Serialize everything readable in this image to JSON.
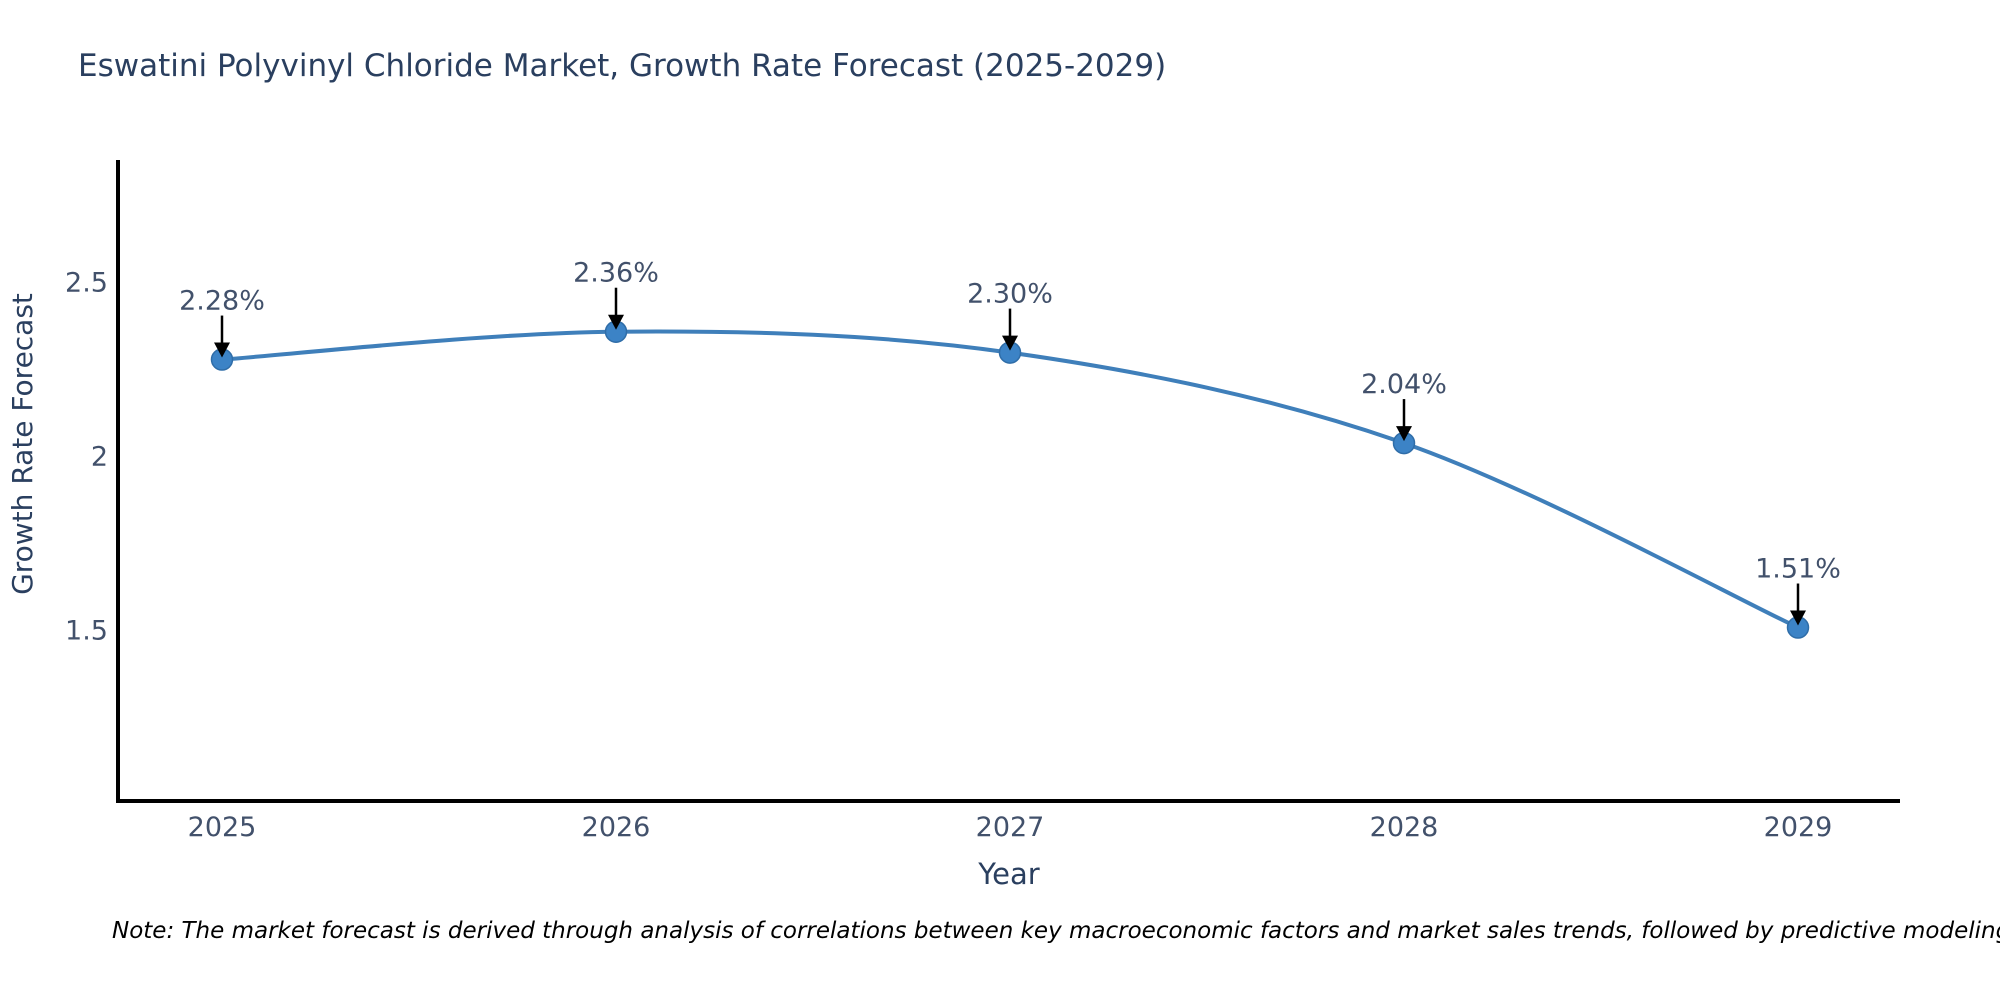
{
  "title": "Eswatini Polyvinyl Chloride Market, Growth Rate Forecast (2025-2029)",
  "note": "Note: The market forecast is derived through analysis of correlations between key macroeconomic factors and market sales trends, followed by predictive modeling to project future sales",
  "chart_data": {
    "type": "line",
    "title": "Eswatini Polyvinyl Chloride Market, Growth Rate Forecast (2025-2029)",
    "x": [
      2025,
      2026,
      2027,
      2028,
      2029
    ],
    "y": [
      2.28,
      2.36,
      2.3,
      2.04,
      1.51
    ],
    "point_labels": [
      "2.28%",
      "2.36%",
      "2.30%",
      "2.04%",
      "1.51%"
    ],
    "x_tick_labels": [
      "2025",
      "2026",
      "2027",
      "2028",
      "2029"
    ],
    "y_ticks": [
      1.5,
      2,
      2.5
    ],
    "y_tick_labels": [
      "1.5",
      "2",
      "2.5"
    ],
    "xlabel": "Year",
    "ylabel": "Growth Rate Forecast",
    "ylim": [
      1.01,
      2.86
    ],
    "grid": false,
    "legend": false,
    "curve": "spline",
    "line_color": "#3f7fba",
    "marker_color": "#3c83c6",
    "marker_edge_color": "#2f6da8",
    "annotation_arrow_color": "#000000",
    "axis_line_color": "#000000",
    "title_text_color": "#2a3f5f",
    "tick_text_color": "#42516b"
  }
}
